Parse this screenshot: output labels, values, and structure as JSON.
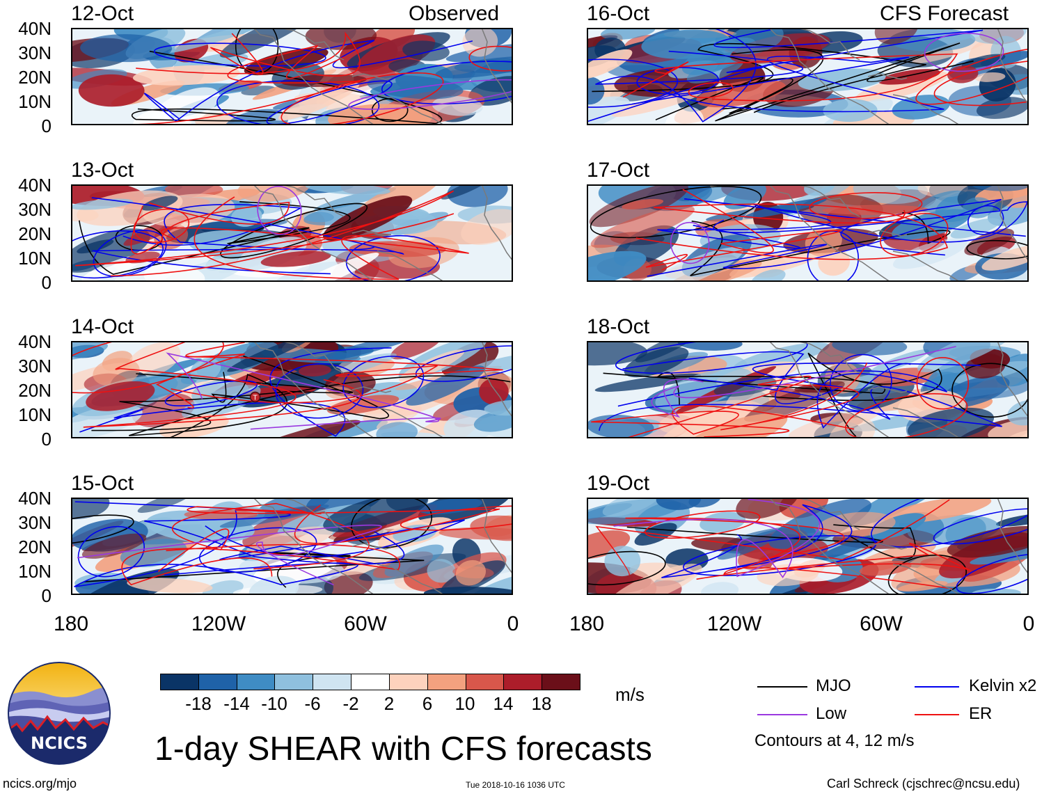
{
  "headers": {
    "observed": "Observed",
    "forecast": "CFS Forecast"
  },
  "panels": {
    "observed": [
      {
        "date": "12-Oct"
      },
      {
        "date": "13-Oct"
      },
      {
        "date": "14-Oct"
      },
      {
        "date": "15-Oct"
      }
    ],
    "forecast": [
      {
        "date": "16-Oct"
      },
      {
        "date": "17-Oct"
      },
      {
        "date": "18-Oct"
      },
      {
        "date": "19-Oct"
      }
    ]
  },
  "lat_ticks": [
    "40N",
    "30N",
    "20N",
    "10N",
    "0"
  ],
  "lon_ticks": [
    "180",
    "120W",
    "60W",
    "0"
  ],
  "colorbar": {
    "labels": [
      "-18",
      "-14",
      "-10",
      "-6",
      "-2",
      "2",
      "6",
      "10",
      "14",
      "18"
    ],
    "colors": [
      "#0a3466",
      "#1f62a8",
      "#3f8cc4",
      "#8fc0de",
      "#cfe4f1",
      "#ffffff",
      "#fdd2bd",
      "#f3a17f",
      "#d8574b",
      "#ac1d2a",
      "#6b0f19"
    ],
    "units": "m/s"
  },
  "title": "1-day SHEAR with CFS forecasts",
  "legend": {
    "items": [
      {
        "label": "MJO",
        "color": "#000000"
      },
      {
        "label": "Kelvin x2",
        "color": "#0000ee"
      },
      {
        "label": "Low",
        "color": "#9a38e0"
      },
      {
        "label": "ER",
        "color": "#ee1111"
      }
    ],
    "note": "Contours at 4, 12 m/s"
  },
  "logo": {
    "text": "NCICS"
  },
  "footer": {
    "url": "ncics.org/mjo",
    "timestamp": "Tue 2018-10-16 1036 UTC",
    "author": "Carl Schreck (cjschrec@ncsu.edu)"
  },
  "storm_marker": {
    "panel_date": "14-Oct",
    "symbol": "T",
    "lon": -105,
    "lat": 17
  }
}
